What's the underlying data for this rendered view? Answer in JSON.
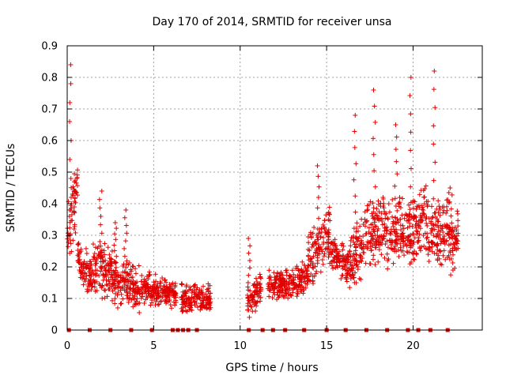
{
  "chart_data": {
    "type": "scatter",
    "title": "Day 170 of 2014, SRMTID for receiver unsa",
    "xlabel": "GPS time / hours",
    "ylabel": "SRMTID / TECUs",
    "xlim": [
      0,
      24
    ],
    "ylim": [
      0,
      0.9
    ],
    "xticks": [
      "0",
      "5",
      "10",
      "15",
      "20"
    ],
    "yticks": [
      "0",
      "0.1",
      "0.2",
      "0.3",
      "0.4",
      "0.5",
      "0.6",
      "0.7",
      "0.8",
      "0.9"
    ],
    "grid": true,
    "marker": "+",
    "color": "#e00000",
    "series": [
      {
        "name": "SRMTID",
        "segments": [
          {
            "x_start": 0.0,
            "x_end": 0.6,
            "base": [
              0.3,
              0.45
            ],
            "spread": 0.12,
            "peak": 0.84
          },
          {
            "x_start": 0.6,
            "x_end": 1.5,
            "base": [
              0.22,
              0.16
            ],
            "spread": 0.08
          },
          {
            "x_start": 1.5,
            "x_end": 2.3,
            "base": [
              0.2,
              0.18
            ],
            "spread": 0.1,
            "peak": 0.44
          },
          {
            "x_start": 2.3,
            "x_end": 3.2,
            "base": [
              0.18,
              0.14
            ],
            "spread": 0.09,
            "peak": 0.34
          },
          {
            "x_start": 3.2,
            "x_end": 4.2,
            "base": [
              0.16,
              0.13
            ],
            "spread": 0.08,
            "peak": 0.38
          },
          {
            "x_start": 4.2,
            "x_end": 5.3,
            "base": [
              0.14,
              0.12
            ],
            "spread": 0.06
          },
          {
            "x_start": 5.3,
            "x_end": 6.3,
            "base": [
              0.12,
              0.11
            ],
            "spread": 0.05
          },
          {
            "x_start": 6.6,
            "x_end": 8.3,
            "base": [
              0.1,
              0.1
            ],
            "spread": 0.05
          },
          {
            "x_start": 10.4,
            "x_end": 11.2,
            "base": [
              0.08,
              0.14
            ],
            "spread": 0.06,
            "peak": 0.29
          },
          {
            "x_start": 11.6,
            "x_end": 13.2,
            "base": [
              0.14,
              0.15
            ],
            "spread": 0.05
          },
          {
            "x_start": 13.2,
            "x_end": 13.9,
            "base": [
              0.15,
              0.18
            ],
            "spread": 0.06
          },
          {
            "x_start": 13.9,
            "x_end": 15.2,
            "base": [
              0.22,
              0.3
            ],
            "spread": 0.1,
            "peak": 0.52
          },
          {
            "x_start": 15.2,
            "x_end": 16.3,
            "base": [
              0.25,
              0.2
            ],
            "spread": 0.06
          },
          {
            "x_start": 16.3,
            "x_end": 17.4,
            "base": [
              0.22,
              0.3
            ],
            "spread": 0.12,
            "peak": 0.68
          },
          {
            "x_start": 17.4,
            "x_end": 18.5,
            "base": [
              0.3,
              0.35
            ],
            "spread": 0.12,
            "peak": 0.76
          },
          {
            "x_start": 18.5,
            "x_end": 19.5,
            "base": [
              0.3,
              0.32
            ],
            "spread": 0.12,
            "peak": 0.65
          },
          {
            "x_start": 19.5,
            "x_end": 20.8,
            "base": [
              0.28,
              0.35
            ],
            "spread": 0.13,
            "peak": 0.8
          },
          {
            "x_start": 20.8,
            "x_end": 22.1,
            "base": [
              0.3,
              0.32
            ],
            "spread": 0.13,
            "peak": 0.82
          },
          {
            "x_start": 22.1,
            "x_end": 22.6,
            "base": [
              0.25,
              0.3
            ],
            "spread": 0.1,
            "peak": 0.45
          }
        ],
        "zero_markers_x": [
          0.1,
          1.3,
          2.5,
          3.7,
          4.9,
          6.1,
          6.4,
          6.7,
          7.0,
          7.5,
          10.5,
          11.3,
          11.9,
          12.6,
          13.7,
          15.0,
          16.1,
          17.3,
          18.5,
          19.7,
          20.3,
          21.0,
          22.0
        ]
      }
    ]
  }
}
